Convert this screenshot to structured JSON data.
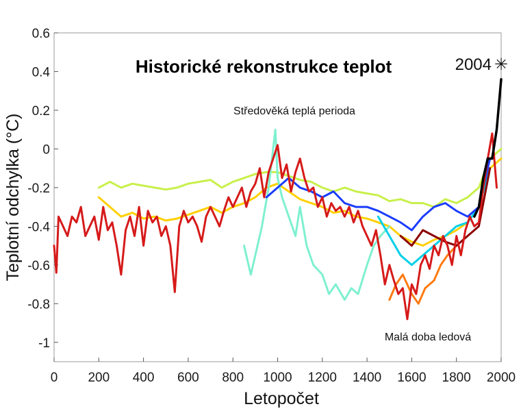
{
  "chart_data": {
    "type": "line",
    "title": "Historické rekonstrukce teplot",
    "xlabel": "Letopočet",
    "ylabel": "Teplotní odchylka  (°C)",
    "xlim": [
      0,
      2000
    ],
    "ylim": [
      -1.1,
      0.6
    ],
    "xticks": [
      "0",
      "200",
      "400",
      "600",
      "800",
      "1000",
      "1200",
      "1400",
      "1600",
      "1800",
      "2000"
    ],
    "yticks": [
      "0.6",
      "0.4",
      "0.2",
      "0",
      "-0.2",
      "-0.4",
      "-0.6",
      "-0.8",
      "-1"
    ],
    "grid": false,
    "annotations": {
      "medieval": "Středověká teplá perioda",
      "little_ice_age": "Malá doba ledová",
      "year_2004": "2004",
      "star": "✳"
    },
    "series": [
      {
        "color": "#c8f04a",
        "x": [
          200,
          250,
          300,
          350,
          400,
          450,
          500,
          550,
          600,
          650,
          700,
          750,
          800,
          850,
          900,
          950,
          1000,
          1050,
          1100,
          1150,
          1200,
          1250,
          1300,
          1350,
          1400,
          1450,
          1500,
          1550,
          1600,
          1650,
          1700,
          1750,
          1800,
          1850,
          1900,
          1950,
          2000
        ],
        "y": [
          -0.2,
          -0.17,
          -0.2,
          -0.18,
          -0.19,
          -0.2,
          -0.21,
          -0.2,
          -0.18,
          -0.17,
          -0.16,
          -0.2,
          -0.17,
          -0.15,
          -0.13,
          -0.12,
          -0.12,
          -0.14,
          -0.16,
          -0.17,
          -0.2,
          -0.22,
          -0.2,
          -0.22,
          -0.23,
          -0.24,
          -0.27,
          -0.26,
          -0.28,
          -0.28,
          -0.3,
          -0.26,
          -0.28,
          -0.25,
          -0.2,
          -0.05,
          0.0
        ]
      },
      {
        "color": "#ffd000",
        "x": [
          200,
          250,
          300,
          350,
          400,
          450,
          500,
          550,
          600,
          650,
          700,
          750,
          800,
          850,
          900,
          950,
          1000,
          1050,
          1100,
          1150,
          1200,
          1250,
          1300,
          1350,
          1400,
          1450,
          1500,
          1550,
          1600,
          1650,
          1700,
          1750,
          1800,
          1850,
          1900,
          1950,
          2000
        ],
        "y": [
          -0.25,
          -0.3,
          -0.35,
          -0.33,
          -0.36,
          -0.35,
          -0.37,
          -0.36,
          -0.34,
          -0.32,
          -0.3,
          -0.33,
          -0.3,
          -0.28,
          -0.25,
          -0.2,
          -0.18,
          -0.22,
          -0.26,
          -0.28,
          -0.3,
          -0.33,
          -0.32,
          -0.35,
          -0.36,
          -0.38,
          -0.4,
          -0.45,
          -0.48,
          -0.5,
          -0.47,
          -0.45,
          -0.42,
          -0.38,
          -0.3,
          -0.1,
          -0.05
        ]
      },
      {
        "color": "#7ef0d0",
        "x": [
          850,
          880,
          900,
          930,
          960,
          990,
          1000,
          1020,
          1050,
          1080,
          1100,
          1130,
          1160,
          1200,
          1230,
          1260,
          1300,
          1330,
          1360,
          1400,
          1430,
          1460,
          1500
        ],
        "y": [
          -0.5,
          -0.65,
          -0.55,
          -0.4,
          -0.2,
          0.1,
          -0.15,
          -0.25,
          -0.35,
          -0.45,
          -0.3,
          -0.5,
          -0.6,
          -0.65,
          -0.75,
          -0.7,
          -0.78,
          -0.72,
          -0.75,
          -0.6,
          -0.5,
          -0.45,
          -0.4
        ]
      },
      {
        "color": "#00d0e8",
        "x": [
          1450,
          1500,
          1550,
          1600,
          1650,
          1700,
          1750,
          1800,
          1850,
          1900,
          1950
        ],
        "y": [
          -0.35,
          -0.45,
          -0.55,
          -0.6,
          -0.55,
          -0.5,
          -0.45,
          -0.4,
          -0.38,
          -0.3,
          -0.1
        ]
      },
      {
        "color": "#1a3cff",
        "x": [
          950,
          1000,
          1050,
          1100,
          1150,
          1200,
          1250,
          1300,
          1350,
          1400,
          1450,
          1500,
          1550,
          1600,
          1650,
          1700,
          1750,
          1800,
          1850,
          1900,
          1950
        ],
        "y": [
          -0.25,
          -0.2,
          -0.15,
          -0.2,
          -0.22,
          -0.25,
          -0.22,
          -0.28,
          -0.3,
          -0.3,
          -0.32,
          -0.35,
          -0.38,
          -0.42,
          -0.35,
          -0.3,
          -0.28,
          -0.32,
          -0.35,
          -0.3,
          -0.05
        ]
      },
      {
        "color": "#ff7a10",
        "x": [
          1500,
          1530,
          1560,
          1600,
          1630,
          1660,
          1700,
          1730,
          1760,
          1800
        ],
        "y": [
          -0.78,
          -0.7,
          -0.65,
          -0.75,
          -0.8,
          -0.72,
          -0.68,
          -0.6,
          -0.55,
          -0.5
        ]
      },
      {
        "color": "#8b0000",
        "x": [
          1550,
          1600,
          1650,
          1700,
          1750,
          1800,
          1850,
          1900,
          1950
        ],
        "y": [
          -0.45,
          -0.5,
          -0.42,
          -0.45,
          -0.48,
          -0.5,
          -0.45,
          -0.4,
          -0.1
        ]
      },
      {
        "color": "#d61a1a",
        "x": [
          0,
          10,
          20,
          40,
          60,
          80,
          100,
          120,
          140,
          160,
          180,
          200,
          220,
          240,
          260,
          280,
          300,
          320,
          340,
          360,
          380,
          400,
          420,
          440,
          460,
          480,
          500,
          520,
          540,
          560,
          580,
          600,
          620,
          640,
          660,
          680,
          700,
          720,
          740,
          760,
          780,
          800,
          820,
          840,
          860,
          880,
          900,
          920,
          940,
          960,
          980,
          1000,
          1020,
          1040,
          1060,
          1080,
          1100,
          1120,
          1140,
          1160,
          1180,
          1200,
          1220,
          1240,
          1260,
          1280,
          1300,
          1320,
          1340,
          1360,
          1380,
          1400,
          1420,
          1440,
          1460,
          1480,
          1500,
          1520,
          1540,
          1560,
          1580,
          1600,
          1620,
          1640,
          1660,
          1680,
          1700,
          1720,
          1740,
          1760,
          1780,
          1800,
          1820,
          1840,
          1860,
          1880,
          1900,
          1920,
          1940,
          1960,
          1980
        ],
        "y": [
          -0.5,
          -0.64,
          -0.35,
          -0.4,
          -0.45,
          -0.35,
          -0.38,
          -0.3,
          -0.45,
          -0.4,
          -0.35,
          -0.47,
          -0.3,
          -0.42,
          -0.38,
          -0.5,
          -0.65,
          -0.42,
          -0.35,
          -0.45,
          -0.3,
          -0.5,
          -0.32,
          -0.38,
          -0.35,
          -0.45,
          -0.4,
          -0.5,
          -0.74,
          -0.4,
          -0.32,
          -0.38,
          -0.35,
          -0.4,
          -0.48,
          -0.35,
          -0.3,
          -0.35,
          -0.4,
          -0.32,
          -0.25,
          -0.3,
          -0.25,
          -0.2,
          -0.3,
          -0.22,
          -0.18,
          -0.1,
          -0.25,
          -0.12,
          -0.05,
          0.02,
          -0.15,
          -0.08,
          -0.22,
          -0.12,
          -0.05,
          -0.15,
          -0.22,
          -0.2,
          -0.3,
          -0.25,
          -0.35,
          -0.28,
          -0.32,
          -0.3,
          -0.35,
          -0.3,
          -0.38,
          -0.32,
          -0.4,
          -0.45,
          -0.5,
          -0.42,
          -0.55,
          -0.7,
          -0.6,
          -0.68,
          -0.75,
          -0.72,
          -0.88,
          -0.7,
          -0.75,
          -0.6,
          -0.55,
          -0.62,
          -0.5,
          -0.55,
          -0.45,
          -0.5,
          -0.6,
          -0.45,
          -0.55,
          -0.42,
          -0.35,
          -0.4,
          -0.38,
          -0.2,
          -0.05,
          0.08,
          -0.2
        ]
      },
      {
        "color": "#000000",
        "x": [
          1880,
          1900,
          1920,
          1940,
          1960,
          1980,
          2000
        ],
        "y": [
          -0.35,
          -0.3,
          -0.15,
          -0.05,
          -0.05,
          0.1,
          0.36
        ]
      }
    ]
  }
}
